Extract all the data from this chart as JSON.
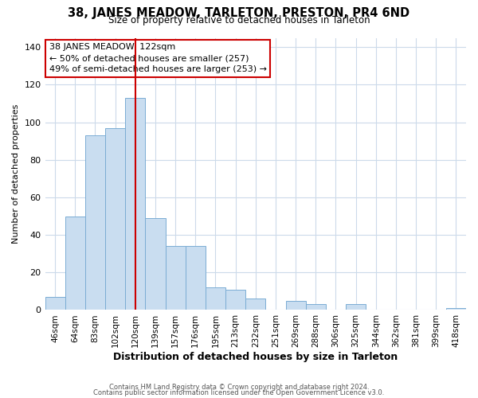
{
  "title": "38, JANES MEADOW, TARLETON, PRESTON, PR4 6ND",
  "subtitle": "Size of property relative to detached houses in Tarleton",
  "xlabel": "Distribution of detached houses by size in Tarleton",
  "ylabel": "Number of detached properties",
  "categories": [
    "46sqm",
    "64sqm",
    "83sqm",
    "102sqm",
    "120sqm",
    "139sqm",
    "157sqm",
    "176sqm",
    "195sqm",
    "213sqm",
    "232sqm",
    "251sqm",
    "269sqm",
    "288sqm",
    "306sqm",
    "325sqm",
    "344sqm",
    "362sqm",
    "381sqm",
    "399sqm",
    "418sqm"
  ],
  "values": [
    7,
    50,
    93,
    97,
    113,
    49,
    34,
    34,
    12,
    11,
    6,
    0,
    5,
    3,
    0,
    3,
    0,
    0,
    0,
    0,
    1
  ],
  "bar_color": "#c9ddf0",
  "bar_edge_color": "#7badd4",
  "vline_x_index": 4,
  "vline_color": "#cc0000",
  "annotation_title": "38 JANES MEADOW: 122sqm",
  "annotation_line1": "← 50% of detached houses are smaller (257)",
  "annotation_line2": "49% of semi-detached houses are larger (253) →",
  "annotation_box_color": "#ffffff",
  "annotation_box_edge": "#cc0000",
  "ylim": [
    0,
    145
  ],
  "yticks": [
    0,
    20,
    40,
    60,
    80,
    100,
    120,
    140
  ],
  "footer1": "Contains HM Land Registry data © Crown copyright and database right 2024.",
  "footer2": "Contains public sector information licensed under the Open Government Licence v3.0.",
  "background_color": "#ffffff",
  "grid_color": "#ccdaea"
}
